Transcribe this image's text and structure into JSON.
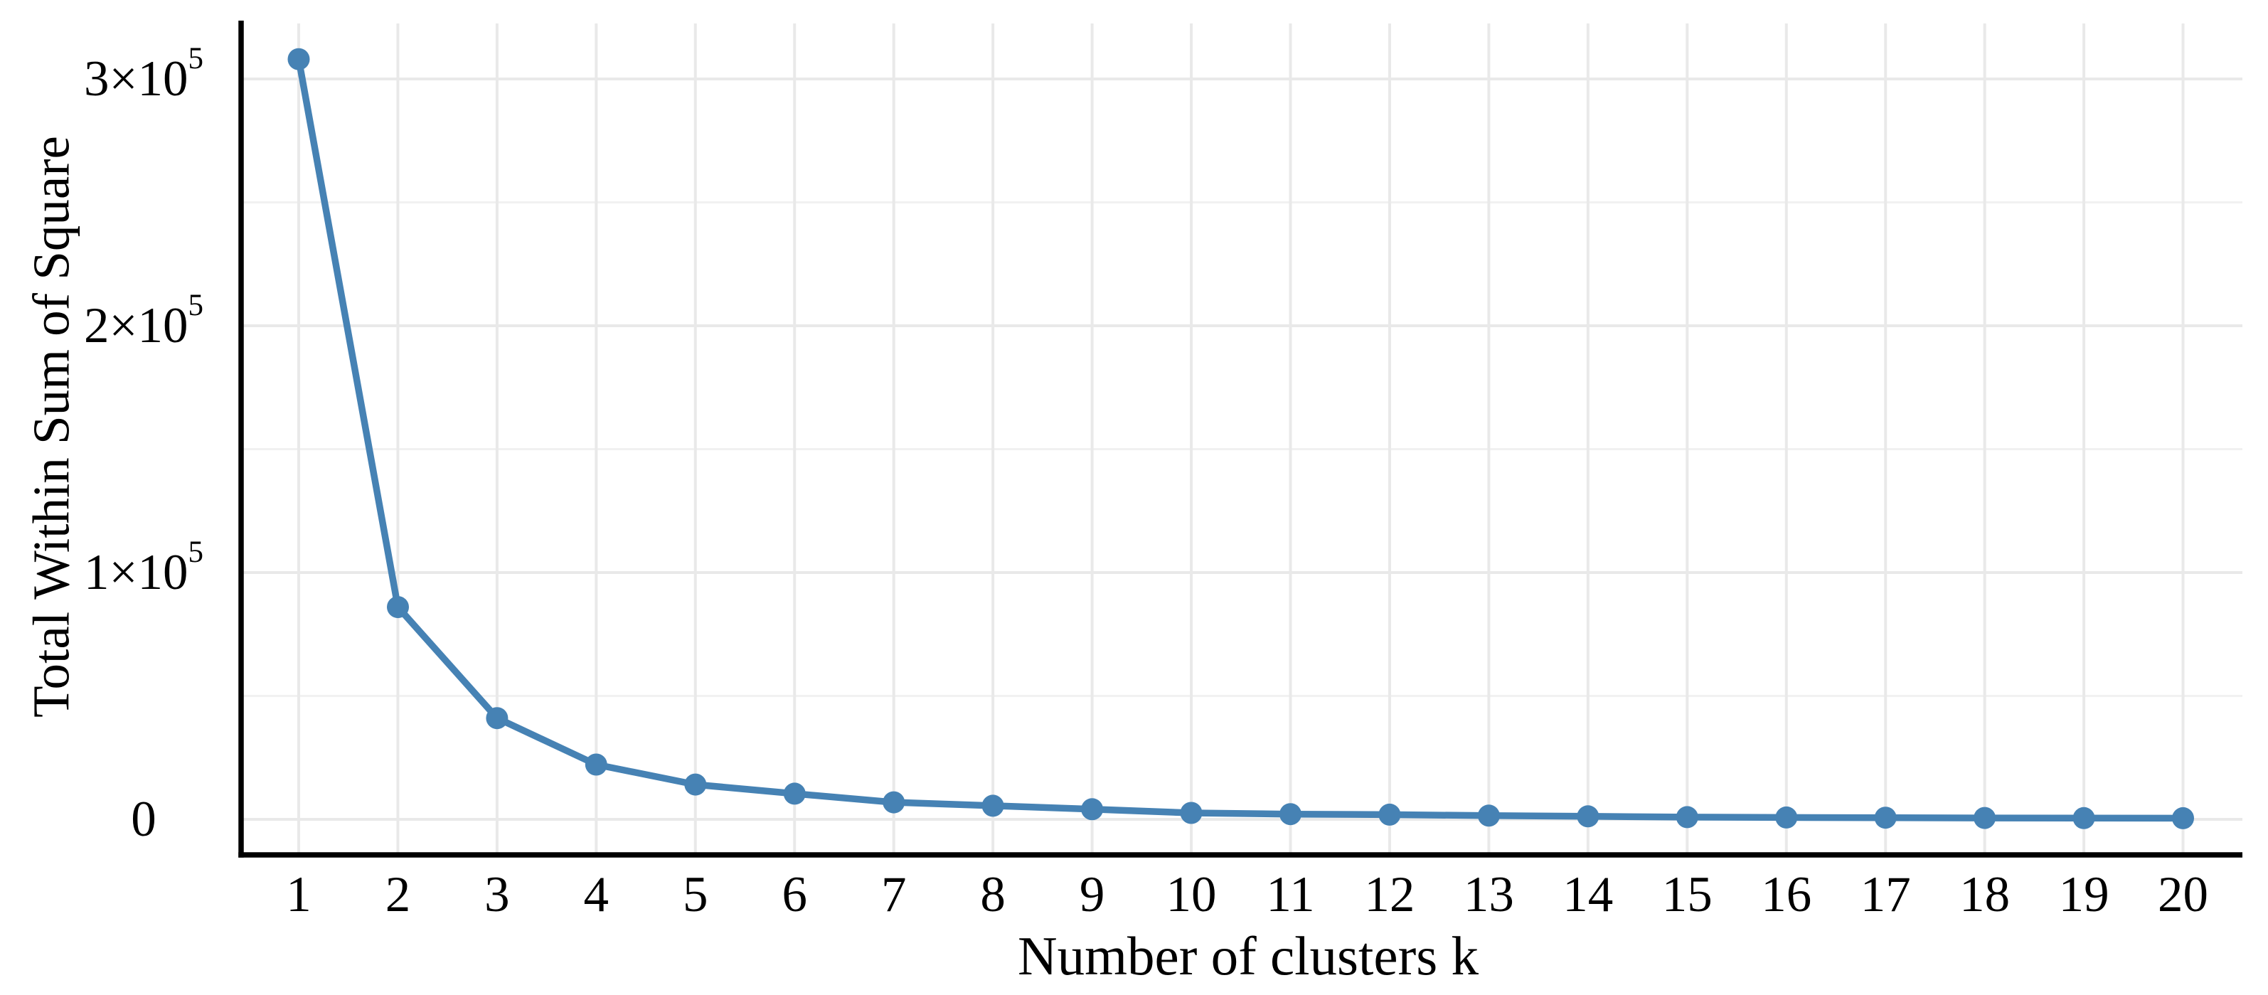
{
  "chart_data": {
    "type": "line",
    "title": "",
    "xlabel": "Number of clusters k",
    "ylabel": "Total Within Sum of Square",
    "x": [
      1,
      2,
      3,
      4,
      5,
      6,
      7,
      8,
      9,
      10,
      11,
      12,
      13,
      14,
      15,
      16,
      17,
      18,
      19,
      20
    ],
    "series": [
      {
        "name": "total-within-sum-of-squares",
        "values": [
          308000,
          86000,
          41000,
          22200,
          14100,
          10400,
          6900,
          5500,
          4100,
          2600,
          2100,
          1900,
          1500,
          1200,
          900,
          750,
          650,
          550,
          500,
          450
        ]
      }
    ],
    "x_tick_labels": [
      "1",
      "2",
      "3",
      "4",
      "5",
      "6",
      "7",
      "8",
      "9",
      "10",
      "11",
      "12",
      "13",
      "14",
      "15",
      "16",
      "17",
      "18",
      "19",
      "20"
    ],
    "y_ticks": [
      {
        "value": 0,
        "base": "0",
        "exp": "",
        "label": "0"
      },
      {
        "value": 100000,
        "base": "1×10",
        "exp": "5",
        "label": "1×10^5"
      },
      {
        "value": 200000,
        "base": "2×10",
        "exp": "5",
        "label": "2×10^5"
      },
      {
        "value": 300000,
        "base": "3×10",
        "exp": "5",
        "label": "3×10^5"
      }
    ],
    "y_minor_ticks": [
      50000,
      150000,
      250000
    ],
    "xlim": [
      0.4,
      20.6
    ],
    "ylim": [
      -15000,
      322000
    ],
    "grid": "on",
    "legend": "none",
    "marker": "circle",
    "colors": {
      "series": "#4682B4",
      "grid_major": "#E9E9E9",
      "grid_minor": "#F1F1F1",
      "axis": "#000000",
      "text": "#000000",
      "background": "#FFFFFF"
    }
  }
}
